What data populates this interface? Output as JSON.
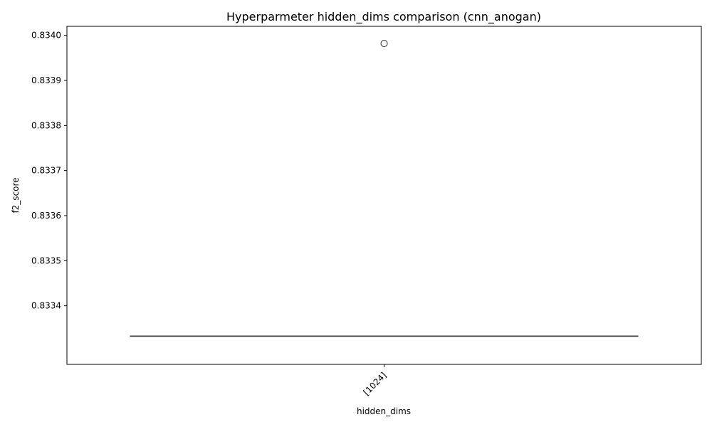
{
  "chart_data": {
    "type": "box",
    "title": "Hyperparmeter hidden_dims comparison (cnn_anogan)",
    "xlabel": "hidden_dims",
    "ylabel": "f2_score",
    "categories": [
      "[1024]"
    ],
    "ylim": [
      0.83327,
      0.83402
    ],
    "yticks": [
      0.8334,
      0.8335,
      0.8336,
      0.8337,
      0.8338,
      0.8339,
      0.834
    ],
    "ytick_labels": [
      "0.8334",
      "0.8335",
      "0.8336",
      "0.8337",
      "0.8338",
      "0.8339",
      "0.8340"
    ],
    "boxes": [
      {
        "category": "[1024]",
        "whisker_low": 0.833333,
        "q1": 0.833333,
        "median": 0.833333,
        "q3": 0.833333,
        "whisker_high": 0.833333,
        "outliers": [
          0.833982
        ]
      }
    ],
    "grid": false,
    "colors": {
      "box": "#3d3d3d",
      "axis": "#000000"
    }
  }
}
